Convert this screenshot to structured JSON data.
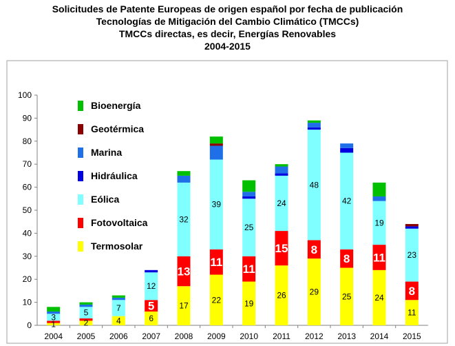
{
  "chart_data": {
    "type": "bar",
    "stacked": true,
    "title": [
      "Solicitudes de Patente Europeas de origen español por fecha de publicación",
      "Tecnologías de Mitigación del Cambio Climático (TMCCs)",
      "TMCCs directas, es decir, Energías Renovables",
      "2004-2015"
    ],
    "xlabel": "",
    "ylabel": "",
    "ylim": [
      0,
      100
    ],
    "yticks": [
      0,
      10,
      20,
      30,
      40,
      50,
      60,
      70,
      80,
      90,
      100
    ],
    "categories": [
      "2004",
      "2005",
      "2006",
      "2007",
      "2008",
      "2009",
      "2010",
      "2011",
      "2012",
      "2013",
      "2014",
      "2015"
    ],
    "grid": false,
    "legend_position": "top-left",
    "series": [
      {
        "name": "Termosolar",
        "color": "#ffff00",
        "values": [
          1,
          2,
          4,
          6,
          17,
          22,
          19,
          26,
          29,
          25,
          24,
          11
        ],
        "labels": [
          "1",
          "2",
          "4",
          "6",
          "17",
          "22",
          "19",
          "26",
          "29",
          "25",
          "24",
          "11"
        ]
      },
      {
        "name": "Fotovoltaica",
        "color": "#ff0000",
        "values": [
          1,
          1,
          0,
          5,
          13,
          11,
          11,
          15,
          8,
          8,
          11,
          8
        ],
        "labels": [
          "",
          "",
          "",
          "5",
          "13",
          "11",
          "11",
          "15",
          "8",
          "8",
          "11",
          "8"
        ]
      },
      {
        "name": "Eólica",
        "color": "#7fffff",
        "values": [
          3,
          5,
          7,
          12,
          32,
          39,
          25,
          24,
          48,
          42,
          19,
          23
        ],
        "labels": [
          "3",
          "5",
          "7",
          "12",
          "32",
          "39",
          "25",
          "24",
          "48",
          "42",
          "19",
          "23"
        ]
      },
      {
        "name": "Hidráulica",
        "color": "#0000e0",
        "values": [
          0,
          0,
          0,
          1,
          0,
          0,
          1,
          1,
          1,
          2,
          0,
          1
        ],
        "labels": [
          "",
          "",
          "",
          "",
          "",
          "",
          "",
          "",
          "",
          "",
          "",
          ""
        ]
      },
      {
        "name": "Marina",
        "color": "#1e6fe8",
        "values": [
          1,
          1,
          1,
          0,
          3,
          6,
          2,
          3,
          2,
          2,
          2,
          0
        ],
        "labels": [
          "",
          "",
          "",
          "",
          "",
          "",
          "",
          "",
          "",
          "",
          "",
          ""
        ]
      },
      {
        "name": "Geotérmica",
        "color": "#8b0000",
        "values": [
          0,
          0,
          0,
          0,
          0,
          1,
          0,
          0,
          0,
          0,
          0,
          1
        ],
        "labels": [
          "",
          "",
          "",
          "",
          "",
          "",
          "",
          "",
          "",
          "",
          "",
          ""
        ]
      },
      {
        "name": "Bioenergía",
        "color": "#00c000",
        "values": [
          2,
          1,
          1,
          0,
          2,
          3,
          5,
          1,
          1,
          0,
          6,
          0
        ],
        "labels": [
          "",
          "",
          "",
          "",
          "",
          "",
          "",
          "",
          "",
          "",
          "",
          ""
        ]
      }
    ],
    "legend_order": [
      "Bioenergía",
      "Geotérmica",
      "Marina",
      "Hidráulica",
      "Eólica",
      "Fotovoltaica",
      "Termosolar"
    ],
    "big_white_label_series": [
      "Fotovoltaica"
    ]
  }
}
